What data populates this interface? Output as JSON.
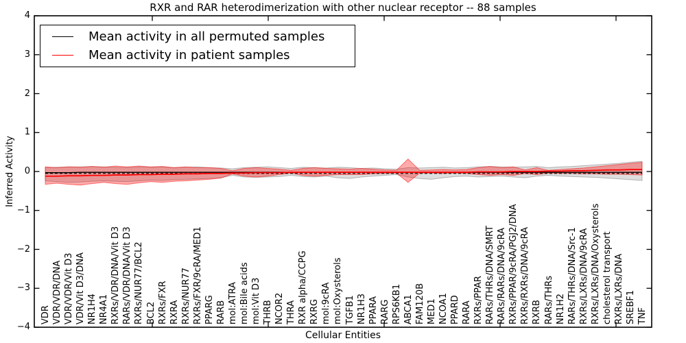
{
  "legend": {
    "items": [
      {
        "label": "Mean activity in all permuted samples",
        "color": "#000000"
      },
      {
        "label": "Mean activity in patient samples",
        "color": "#ff0000"
      }
    ]
  },
  "colors": {
    "permuted_line": "#000000",
    "patient_line": "#ff0000",
    "permuted_band_fill": "rgba(0,0,0,0.13)",
    "permuted_band_edge": "rgba(0,0,0,0.25)",
    "patient_band_fill": "rgba(255,0,0,0.33)",
    "patient_band_edge": "rgba(255,0,0,0.50)"
  },
  "chart_data": {
    "type": "line",
    "title": "RXR and RAR heterodimerization with other nuclear receptor -- 88 samples",
    "xlabel": "Cellular Entities",
    "ylabel": "Inferred Activity",
    "ylim": [
      -4,
      4
    ],
    "yticks": [
      4,
      3,
      2,
      1,
      0,
      -1,
      -2,
      -3,
      -4
    ],
    "ytick_labels": [
      "4",
      "3",
      "2",
      "1",
      "0",
      "−1",
      "−2",
      "−3",
      "−4"
    ],
    "grid": false,
    "legend_position": "upper left",
    "categories": [
      "VDR",
      "VDR/VDR/DNA",
      "VDR/VDR/Vit D3",
      "VDR/Vit D3/DNA",
      "NR1H4",
      "NR4A1",
      "RXRs/VDR/DNA/Vit D3",
      "RARs/VDR/DNA/Vit D3",
      "RXRs/NUR77/BCL2",
      "BCL2",
      "RXRs/FXR",
      "RXRA",
      "RXRs/NUR77",
      "RXRs/FXR/9cRA/MED1",
      "PPARG",
      "RARB",
      "mol:ATRA",
      "mol:Bile acids",
      "mol:Vit D3",
      "THRB",
      "NCOR2",
      "THRA",
      "RXR alpha/CCPG",
      "RXRG",
      "mol:9cRA",
      "mol:Oxysterols",
      "TGFB1",
      "NR1H3",
      "PPARA",
      "RARG",
      "RPS6KB1",
      "ABCA1",
      "FAM120B",
      "MED1",
      "NCOA1",
      "PPARD",
      "RARA",
      "RXRs/PPAR",
      "RARs/THRs/DNA/SMRT",
      "RARs/RARs/DNA/9cRA",
      "RXRs/PPAR/9cRA/PGJ2/DNA",
      "RXRs/RXRs/DNA/9cRA",
      "RXRB",
      "RARs/THRs",
      "NR1H2",
      "RARs/THRs/DNA/Src-1",
      "RXRs/LXRs/DNA/9cRA",
      "RXRs/LXRs/DNA/Oxysterols",
      "cholesterol transport",
      "RXRs/LXRs/DNA",
      "SREBF1",
      "TNF"
    ],
    "series": [
      {
        "name": "Mean activity in all permuted samples",
        "type": "line",
        "style": "solid",
        "color": "#000000",
        "values": [
          -0.03,
          -0.03,
          -0.03,
          -0.02,
          -0.02,
          -0.02,
          -0.02,
          -0.02,
          -0.02,
          -0.02,
          -0.02,
          -0.02,
          -0.02,
          -0.02,
          -0.02,
          -0.02,
          -0.02,
          -0.02,
          -0.02,
          -0.02,
          -0.02,
          -0.02,
          -0.02,
          -0.02,
          -0.02,
          -0.02,
          -0.02,
          -0.02,
          -0.02,
          -0.02,
          -0.02,
          -0.02,
          -0.02,
          -0.02,
          -0.02,
          -0.02,
          -0.02,
          -0.02,
          -0.02,
          -0.02,
          -0.02,
          -0.02,
          -0.02,
          -0.02,
          -0.02,
          -0.02,
          -0.02,
          -0.02,
          -0.02,
          -0.02,
          -0.02,
          -0.02
        ]
      },
      {
        "name": "Mean activity in patient samples",
        "type": "line",
        "style": "solid",
        "color": "#ff0000",
        "values": [
          -0.12,
          -0.12,
          -0.11,
          -0.11,
          -0.1,
          -0.1,
          -0.09,
          -0.09,
          -0.08,
          -0.08,
          -0.07,
          -0.07,
          -0.06,
          -0.06,
          -0.05,
          -0.05,
          -0.04,
          -0.04,
          -0.03,
          -0.03,
          -0.03,
          -0.02,
          -0.02,
          -0.02,
          -0.02,
          -0.02,
          -0.02,
          -0.02,
          -0.02,
          -0.02,
          -0.02,
          -0.02,
          -0.02,
          -0.02,
          -0.02,
          -0.02,
          -0.02,
          -0.01,
          -0.01,
          -0.01,
          0.0,
          0.0,
          0.0,
          0.01,
          0.01,
          0.02,
          0.02,
          0.03,
          0.04,
          0.04,
          0.05,
          0.05
        ]
      },
      {
        "name": "dashed-black-reference-line",
        "type": "line",
        "style": "dashed",
        "color": "#000000",
        "constant": -0.05
      },
      {
        "name": "Permuted samples spread",
        "type": "band",
        "color": "#000000",
        "opacity": 0.13,
        "upper": [
          0.1,
          0.11,
          0.12,
          0.12,
          0.13,
          0.12,
          0.11,
          0.1,
          0.12,
          0.11,
          0.12,
          0.1,
          0.11,
          0.12,
          0.1,
          0.09,
          0.07,
          0.1,
          0.11,
          0.12,
          0.1,
          0.08,
          0.11,
          0.1,
          0.09,
          0.11,
          0.1,
          0.08,
          0.09,
          0.07,
          0.06,
          0.1,
          0.09,
          0.1,
          0.11,
          0.09,
          0.1,
          0.12,
          0.13,
          0.12,
          0.11,
          0.12,
          0.13,
          0.1,
          0.12,
          0.13,
          0.15,
          0.17,
          0.19,
          0.21,
          0.24,
          0.26
        ],
        "lower": [
          -0.24,
          -0.26,
          -0.28,
          -0.27,
          -0.25,
          -0.24,
          -0.25,
          -0.26,
          -0.24,
          -0.22,
          -0.23,
          -0.21,
          -0.2,
          -0.19,
          -0.18,
          -0.16,
          -0.1,
          -0.14,
          -0.15,
          -0.14,
          -0.13,
          -0.1,
          -0.13,
          -0.14,
          -0.12,
          -0.16,
          -0.18,
          -0.14,
          -0.12,
          -0.1,
          -0.08,
          -0.14,
          -0.18,
          -0.2,
          -0.16,
          -0.13,
          -0.12,
          -0.14,
          -0.13,
          -0.12,
          -0.14,
          -0.16,
          -0.12,
          -0.1,
          -0.12,
          -0.13,
          -0.14,
          -0.15,
          -0.17,
          -0.19,
          -0.21,
          -0.23
        ]
      },
      {
        "name": "Patient samples spread",
        "type": "band",
        "color": "#ff0000",
        "opacity": 0.33,
        "upper": [
          0.12,
          0.1,
          0.12,
          0.11,
          0.13,
          0.11,
          0.14,
          0.12,
          0.14,
          0.12,
          0.13,
          0.1,
          0.12,
          0.1,
          0.1,
          0.08,
          0.02,
          0.08,
          0.1,
          0.08,
          0.06,
          0.03,
          0.08,
          0.1,
          0.08,
          0.07,
          0.06,
          0.08,
          0.06,
          0.04,
          0.03,
          0.32,
          0.03,
          0.04,
          0.05,
          0.04,
          0.05,
          0.1,
          0.13,
          0.1,
          0.12,
          0.04,
          0.1,
          0.03,
          0.05,
          0.07,
          0.09,
          0.12,
          0.15,
          0.18,
          0.21,
          0.24
        ],
        "lower": [
          -0.33,
          -0.3,
          -0.33,
          -0.35,
          -0.31,
          -0.28,
          -0.31,
          -0.33,
          -0.29,
          -0.26,
          -0.28,
          -0.25,
          -0.24,
          -0.22,
          -0.2,
          -0.17,
          -0.06,
          -0.12,
          -0.14,
          -0.12,
          -0.08,
          -0.04,
          -0.1,
          -0.12,
          -0.1,
          -0.08,
          -0.08,
          -0.08,
          -0.06,
          -0.05,
          -0.04,
          -0.28,
          -0.04,
          -0.04,
          -0.05,
          -0.04,
          -0.05,
          -0.08,
          -0.1,
          -0.08,
          -0.1,
          -0.05,
          -0.08,
          -0.04,
          -0.05,
          -0.05,
          -0.06,
          -0.06,
          -0.07,
          -0.07,
          -0.08,
          -0.09
        ]
      }
    ]
  }
}
